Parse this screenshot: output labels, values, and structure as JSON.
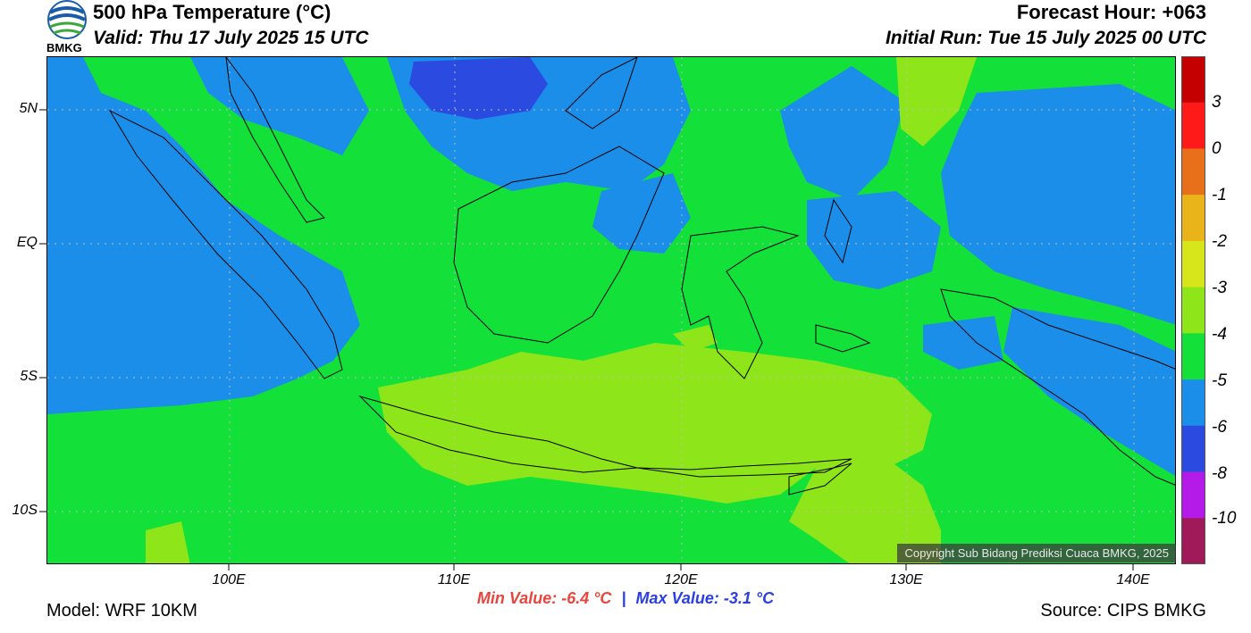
{
  "header": {
    "title": "500 hPa Temperature (°C)",
    "valid": "Valid: Thu 17 July 2025 15 UTC",
    "forecast_hour": "Forecast Hour: +063",
    "initial_run": "Initial Run: Tue 15 July 2025 00 UTC",
    "logo_text": "BMKG"
  },
  "map": {
    "lat_labels": [
      "5N",
      "EQ",
      "5S",
      "10S"
    ],
    "lon_labels": [
      "100E",
      "110E",
      "120E",
      "130E",
      "140E"
    ],
    "copyright": "Copyright Sub Bidang Prediksi Cuaca BMKG, 2025"
  },
  "colorbar": {
    "labels": [
      "3",
      "0",
      "-1",
      "-2",
      "-3",
      "-4",
      "-5",
      "-6",
      "-8",
      "-10"
    ],
    "colors": [
      "#c40000",
      "#ff1a1a",
      "#e8701a",
      "#e8b41a",
      "#d6e61a",
      "#8ee61a",
      "#14e03a",
      "#1a8ee8",
      "#2a4ae0",
      "#b41ae8",
      "#a01a5a"
    ]
  },
  "footer": {
    "min_value": "Min Value: -6.4 °C",
    "separator": "|",
    "max_value": "Max Value: -3.1 °C",
    "model": "Model: WRF 10KM",
    "source": "Source: CIPS BMKG"
  }
}
